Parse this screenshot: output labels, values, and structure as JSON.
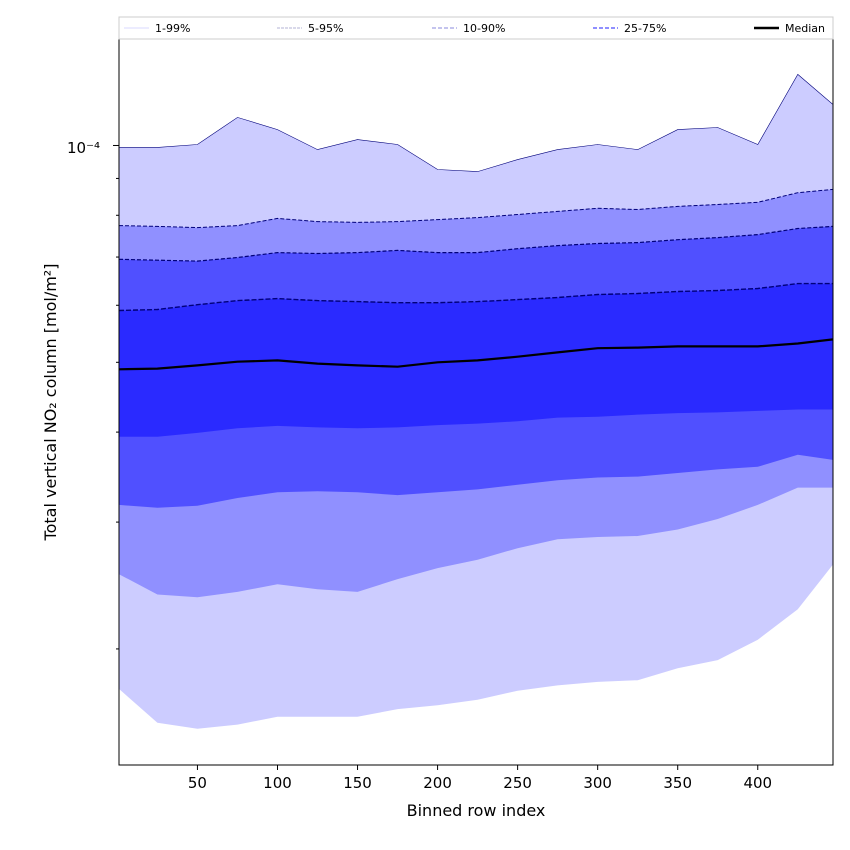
{
  "chart_data": {
    "type": "area",
    "title": "",
    "xlabel": "Binned row index",
    "ylabel": "Total vertical NO₂ column [mol/m²]",
    "xlim": [
      1,
      447
    ],
    "ylim": [
      1.38e-05,
      0.000141
    ],
    "yscale": "log",
    "xticks": [
      50,
      100,
      150,
      200,
      250,
      300,
      350,
      400
    ],
    "xtick_labels": [
      "50",
      "100",
      "150",
      "200",
      "250",
      "300",
      "350",
      "400"
    ],
    "ytick_major_label": "10⁻⁴",
    "legend_placement": "top (above plot, horizontal)",
    "legend": [
      "1-99%",
      "5-95%",
      "10-90%",
      "25-75%",
      "Median"
    ],
    "colors": {
      "band_1_99": "#ccccff",
      "band_5_95": "#9090ff",
      "band_10_90": "#5050ff",
      "band_25_75": "#2a2aff",
      "median": "#000000",
      "edge": "#00007a"
    },
    "x": [
      1,
      25,
      50,
      75,
      100,
      125,
      150,
      175,
      200,
      225,
      250,
      275,
      300,
      325,
      350,
      375,
      400,
      425,
      447
    ],
    "series": [
      {
        "name": "p1",
        "values": [
          1.76e-05,
          1.58e-05,
          1.55e-05,
          1.57e-05,
          1.61e-05,
          1.61e-05,
          1.61e-05,
          1.65e-05,
          1.67e-05,
          1.7e-05,
          1.75e-05,
          1.78e-05,
          1.8e-05,
          1.81e-05,
          1.88e-05,
          1.93e-05,
          2.06e-05,
          2.27e-05,
          2.62e-05
        ]
      },
      {
        "name": "p5",
        "values": [
          2.54e-05,
          2.38e-05,
          2.36e-05,
          2.4e-05,
          2.46e-05,
          2.42e-05,
          2.4e-05,
          2.5e-05,
          2.59e-05,
          2.66e-05,
          2.76e-05,
          2.84e-05,
          2.86e-05,
          2.87e-05,
          2.93e-05,
          3.03e-05,
          3.17e-05,
          3.35e-05,
          3.35e-05
        ]
      },
      {
        "name": "p10",
        "values": [
          3.17e-05,
          3.14e-05,
          3.16e-05,
          3.24e-05,
          3.3e-05,
          3.31e-05,
          3.3e-05,
          3.27e-05,
          3.3e-05,
          3.33e-05,
          3.38e-05,
          3.43e-05,
          3.46e-05,
          3.47e-05,
          3.51e-05,
          3.55e-05,
          3.58e-05,
          3.72e-05,
          3.66e-05
        ]
      },
      {
        "name": "p25",
        "values": [
          3.94e-05,
          3.94e-05,
          3.99e-05,
          4.05e-05,
          4.08e-05,
          4.06e-05,
          4.05e-05,
          4.06e-05,
          4.09e-05,
          4.11e-05,
          4.14e-05,
          4.19e-05,
          4.2e-05,
          4.23e-05,
          4.25e-05,
          4.26e-05,
          4.28e-05,
          4.3e-05,
          4.3e-05
        ]
      },
      {
        "name": "Median",
        "values": [
          4.89e-05,
          4.9e-05,
          4.95e-05,
          5.01e-05,
          5.03e-05,
          4.98e-05,
          4.95e-05,
          4.93e-05,
          5e-05,
          5.03e-05,
          5.09e-05,
          5.16e-05,
          5.23e-05,
          5.24e-05,
          5.26e-05,
          5.26e-05,
          5.26e-05,
          5.31e-05,
          5.38e-05
        ]
      },
      {
        "name": "p75",
        "values": [
          5.9e-05,
          5.92e-05,
          6.01e-05,
          6.09e-05,
          6.13e-05,
          6.09e-05,
          6.07e-05,
          6.05e-05,
          6.05e-05,
          6.07e-05,
          6.11e-05,
          6.15e-05,
          6.21e-05,
          6.23e-05,
          6.27e-05,
          6.29e-05,
          6.33e-05,
          6.43e-05,
          6.43e-05
        ]
      },
      {
        "name": "p90",
        "values": [
          6.95e-05,
          6.93e-05,
          6.91e-05,
          6.99e-05,
          7.1e-05,
          7.08e-05,
          7.1e-05,
          7.15e-05,
          7.1e-05,
          7.1e-05,
          7.19e-05,
          7.26e-05,
          7.31e-05,
          7.33e-05,
          7.4e-05,
          7.45e-05,
          7.52e-05,
          7.67e-05,
          7.72e-05
        ]
      },
      {
        "name": "p95",
        "values": [
          7.74e-05,
          7.72e-05,
          7.69e-05,
          7.74e-05,
          7.92e-05,
          7.84e-05,
          7.82e-05,
          7.84e-05,
          7.89e-05,
          7.94e-05,
          8.02e-05,
          8.1e-05,
          8.18e-05,
          8.15e-05,
          8.23e-05,
          8.28e-05,
          8.34e-05,
          8.6e-05,
          8.69e-05
        ]
      },
      {
        "name": "p99",
        "values": [
          9.94e-05,
          9.94e-05,
          0.0001003,
          0.0001094,
          0.0001052,
          9.87e-05,
          0.0001019,
          0.0001003,
          9.26e-05,
          9.2e-05,
          9.56e-05,
          9.87e-05,
          0.0001003,
          9.87e-05,
          0.0001052,
          0.0001059,
          0.0001003,
          0.0001255,
          0.000114
        ]
      }
    ]
  }
}
